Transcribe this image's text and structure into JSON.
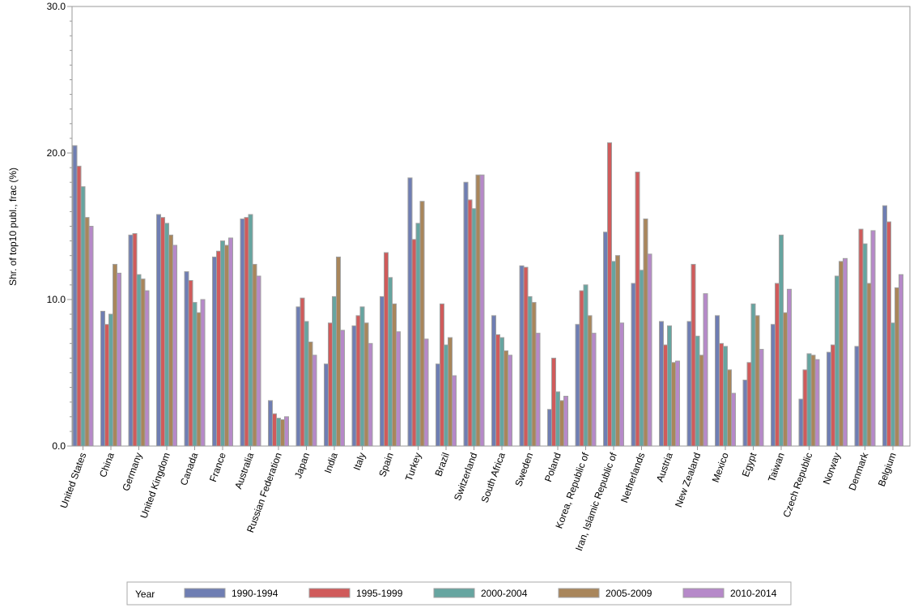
{
  "chart_data": {
    "type": "bar",
    "title": "",
    "xlabel": "",
    "ylabel": "Shr. of top10 publ., frac (%)",
    "ylim": [
      0,
      30
    ],
    "yticks": [
      "0.0",
      "10.0",
      "20.0",
      "30.0"
    ],
    "yticks_values": [
      0,
      10,
      20,
      30
    ],
    "grid": false,
    "legend": {
      "title": "Year",
      "placement": "bottom"
    },
    "categories": [
      "United States",
      "China",
      "Germany",
      "United Kingdom",
      "Canada",
      "France",
      "Australia",
      "Russian Federation",
      "Japan",
      "India",
      "Italy",
      "Spain",
      "Turkey",
      "Brazil",
      "Switzerland",
      "South Africa",
      "Sweden",
      "Poland",
      "Korea, Republic of",
      "Iran, Islamic Republic of",
      "Netherlands",
      "Austria",
      "New Zealand",
      "Mexico",
      "Egypt",
      "Taiwan",
      "Czech Republic",
      "Norway",
      "Denmark",
      "Belgium"
    ],
    "series": [
      {
        "name": "1990-1994",
        "color": "#6f7eb3",
        "values": [
          20.5,
          9.2,
          14.4,
          15.8,
          11.9,
          12.9,
          15.5,
          3.1,
          9.5,
          5.6,
          8.2,
          10.2,
          18.3,
          5.6,
          18.0,
          8.9,
          12.3,
          2.5,
          8.3,
          14.6,
          11.1,
          8.5,
          8.5,
          8.9,
          4.5,
          8.3,
          3.2,
          6.4,
          6.8,
          16.4
        ]
      },
      {
        "name": "1995-1999",
        "color": "#d05b5b",
        "values": [
          19.1,
          8.3,
          14.5,
          15.6,
          11.3,
          13.3,
          15.6,
          2.2,
          10.1,
          8.4,
          8.9,
          13.2,
          14.1,
          9.7,
          16.8,
          7.6,
          12.2,
          6.0,
          10.6,
          20.7,
          18.7,
          6.9,
          12.4,
          7.0,
          5.7,
          11.1,
          5.2,
          6.9,
          14.8,
          15.3
        ]
      },
      {
        "name": "2000-2004",
        "color": "#66a5a0",
        "values": [
          17.7,
          9.0,
          11.7,
          15.2,
          9.8,
          14.0,
          15.8,
          1.9,
          8.5,
          10.2,
          9.5,
          11.5,
          15.2,
          6.9,
          16.2,
          7.4,
          10.2,
          3.7,
          11.0,
          12.6,
          12.0,
          8.2,
          7.5,
          6.8,
          9.7,
          14.4,
          6.3,
          11.6,
          13.8,
          8.4
        ]
      },
      {
        "name": "2005-2009",
        "color": "#a9865b",
        "values": [
          15.6,
          12.4,
          11.4,
          14.4,
          9.1,
          13.7,
          12.4,
          1.8,
          7.1,
          12.9,
          8.4,
          9.7,
          16.7,
          7.4,
          18.5,
          6.5,
          9.8,
          3.1,
          8.9,
          13.0,
          15.5,
          5.7,
          6.2,
          5.2,
          8.9,
          9.1,
          6.2,
          12.6,
          11.1,
          10.8
        ]
      },
      {
        "name": "2010-2014",
        "color": "#b689c9",
        "values": [
          15.0,
          11.8,
          10.6,
          13.7,
          10.0,
          14.2,
          11.6,
          2.0,
          6.2,
          7.9,
          7.0,
          7.8,
          7.3,
          4.8,
          18.5,
          6.2,
          7.7,
          3.4,
          7.7,
          8.4,
          13.1,
          5.8,
          10.4,
          3.6,
          6.6,
          10.7,
          5.9,
          12.8,
          14.7,
          11.7
        ]
      }
    ]
  }
}
